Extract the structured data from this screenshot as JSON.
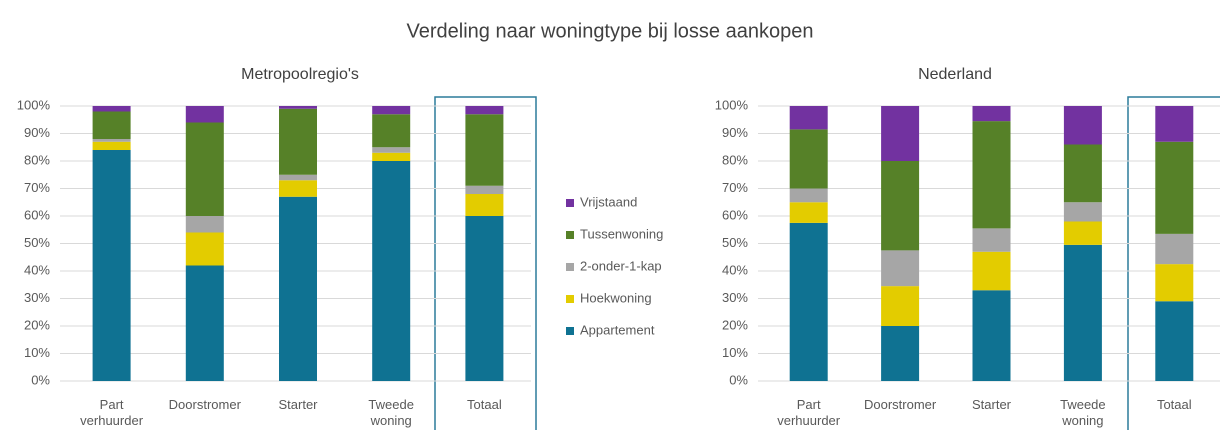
{
  "title": "Verdeling naar woningtype bij losse aankopen",
  "chart_data": [
    {
      "type": "stacked_bar",
      "title": "Metropoolregio's",
      "categories": [
        "Part verhuurder",
        "Doorstromer",
        "Starter",
        "Tweede woning",
        "Totaal"
      ],
      "series": [
        {
          "name": "Appartement",
          "color": "#0f7292",
          "values": [
            84,
            42,
            67,
            80,
            60
          ]
        },
        {
          "name": "Hoekwoning",
          "color": "#e3cc00",
          "values": [
            3,
            12,
            6,
            3,
            8
          ]
        },
        {
          "name": "2-onder-1-kap",
          "color": "#a6a6a6",
          "values": [
            1,
            6,
            2,
            2,
            3
          ]
        },
        {
          "name": "Tussenwoning",
          "color": "#568128",
          "values": [
            10,
            34,
            24,
            12,
            26
          ]
        },
        {
          "name": "Vrijstaand",
          "color": "#7232a0",
          "values": [
            2,
            6,
            1,
            3,
            3
          ]
        }
      ],
      "ylim": [
        0,
        100
      ],
      "yticks": [
        {
          "value": 0,
          "label": "0%"
        },
        {
          "value": 10,
          "label": "10%"
        },
        {
          "value": 20,
          "label": "20%"
        },
        {
          "value": 30,
          "label": "30%"
        },
        {
          "value": 40,
          "label": "40%"
        },
        {
          "value": 50,
          "label": "50%"
        },
        {
          "value": 60,
          "label": "60%"
        },
        {
          "value": 70,
          "label": "70%"
        },
        {
          "value": 80,
          "label": "80%"
        },
        {
          "value": 90,
          "label": "90%"
        },
        {
          "value": 100,
          "label": "100%"
        }
      ],
      "grid": true
    },
    {
      "type": "stacked_bar",
      "title": "Nederland",
      "categories": [
        "Part verhuurder",
        "Doorstromer",
        "Starter",
        "Tweede woning",
        "Totaal"
      ],
      "series": [
        {
          "name": "Appartement",
          "color": "#0f7292",
          "values": [
            57.5,
            20,
            33,
            49.5,
            29
          ]
        },
        {
          "name": "Hoekwoning",
          "color": "#e3cc00",
          "values": [
            7.5,
            14.5,
            14,
            8.5,
            13.5
          ]
        },
        {
          "name": "2-onder-1-kap",
          "color": "#a6a6a6",
          "values": [
            5,
            13,
            8.5,
            7,
            11
          ]
        },
        {
          "name": "Tussenwoning",
          "color": "#568128",
          "values": [
            21.5,
            32.5,
            39,
            21,
            33.5
          ]
        },
        {
          "name": "Vrijstaand",
          "color": "#7232a0",
          "values": [
            8.5,
            20,
            5.5,
            14,
            13
          ]
        }
      ],
      "ylim": [
        0,
        100
      ],
      "yticks": [
        {
          "value": 0,
          "label": "0%"
        },
        {
          "value": 10,
          "label": "10%"
        },
        {
          "value": 20,
          "label": "20%"
        },
        {
          "value": 30,
          "label": "30%"
        },
        {
          "value": 40,
          "label": "40%"
        },
        {
          "value": 50,
          "label": "50%"
        },
        {
          "value": 60,
          "label": "60%"
        },
        {
          "value": 70,
          "label": "70%"
        },
        {
          "value": 80,
          "label": "80%"
        },
        {
          "value": 90,
          "label": "90%"
        },
        {
          "value": 100,
          "label": "100%"
        }
      ],
      "grid": true
    }
  ]
}
